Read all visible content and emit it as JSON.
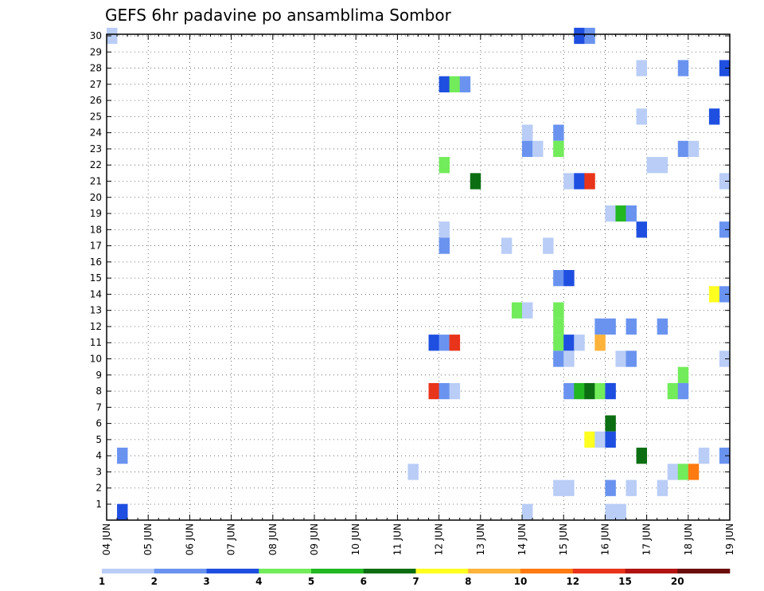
{
  "chart_data": {
    "type": "heatmap",
    "title": "GEFS 6hr padavine po ansamblima Sombor",
    "xlabel": "",
    "ylabel": "",
    "x_tick_labels": [
      "04 JUN",
      "05 JUN",
      "06 JUN",
      "07 JUN",
      "08 JUN",
      "09 JUN",
      "10 JUN",
      "11 JUN",
      "12 JUN",
      "13 JUN",
      "14 JUN",
      "15 JUN",
      "16 JUN",
      "17 JUN",
      "18 JUN",
      "19 JUN"
    ],
    "y_tick_labels": [
      "1",
      "2",
      "3",
      "4",
      "5",
      "6",
      "7",
      "8",
      "9",
      "10",
      "11",
      "12",
      "13",
      "14",
      "15",
      "16",
      "17",
      "18",
      "19",
      "20",
      "21",
      "22",
      "23",
      "24",
      "25",
      "26",
      "27",
      "28",
      "29",
      "30"
    ],
    "time_steps_per_day": 4,
    "ylim": [
      0,
      30
    ],
    "grid": true,
    "colorbar": {
      "placement": "bottom",
      "colors": [
        "#b9cdf6",
        "#6a93f0",
        "#1f4fe0",
        "#72ec5a",
        "#22b822",
        "#0c6e12",
        "#ffff20",
        "#ffb33a",
        "#ff7a10",
        "#e8341a",
        "#b21212",
        "#6b0d0d"
      ],
      "labels": [
        "1",
        "2",
        "3",
        "4",
        "5",
        "6",
        "7",
        "8",
        "10",
        "12",
        "15",
        "20"
      ]
    },
    "cells": [
      {
        "step": 0,
        "member": 30,
        "level": 1
      },
      {
        "step": 1,
        "member": 0,
        "level": 3
      },
      {
        "step": 1,
        "member": 4,
        "level": 2
      },
      {
        "step": 29,
        "member": 3,
        "level": 1
      },
      {
        "step": 31,
        "member": 11,
        "level": 3
      },
      {
        "step": 31,
        "member": 8,
        "level": 10
      },
      {
        "step": 32,
        "member": 27,
        "level": 3
      },
      {
        "step": 32,
        "member": 22,
        "level": 4
      },
      {
        "step": 32,
        "member": 18,
        "level": 1
      },
      {
        "step": 32,
        "member": 17,
        "level": 2
      },
      {
        "step": 32,
        "member": 11,
        "level": 2
      },
      {
        "step": 32,
        "member": 8,
        "level": 2
      },
      {
        "step": 33,
        "member": 27,
        "level": 4
      },
      {
        "step": 33,
        "member": 11,
        "level": 10
      },
      {
        "step": 33,
        "member": 8,
        "level": 1
      },
      {
        "step": 34,
        "member": 27,
        "level": 2
      },
      {
        "step": 35,
        "member": 21,
        "level": 6
      },
      {
        "step": 38,
        "member": 17,
        "level": 1
      },
      {
        "step": 39,
        "member": 13,
        "level": 4
      },
      {
        "step": 40,
        "member": 24,
        "level": 1
      },
      {
        "step": 40,
        "member": 23,
        "level": 2
      },
      {
        "step": 40,
        "member": 13,
        "level": 1
      },
      {
        "step": 40,
        "member": 0,
        "level": 1
      },
      {
        "step": 41,
        "member": 23,
        "level": 1
      },
      {
        "step": 42,
        "member": 17,
        "level": 1
      },
      {
        "step": 43,
        "member": 24,
        "level": 2
      },
      {
        "step": 43,
        "member": 23,
        "level": 4
      },
      {
        "step": 43,
        "member": 15,
        "level": 2
      },
      {
        "step": 43,
        "member": 13,
        "level": 4
      },
      {
        "step": 43,
        "member": 12,
        "level": 4
      },
      {
        "step": 43,
        "member": 11,
        "level": 4
      },
      {
        "step": 43,
        "member": 10,
        "level": 2
      },
      {
        "step": 43,
        "member": 2,
        "level": 1
      },
      {
        "step": 44,
        "member": 21,
        "level": 1
      },
      {
        "step": 44,
        "member": 15,
        "level": 3
      },
      {
        "step": 44,
        "member": 11,
        "level": 3
      },
      {
        "step": 44,
        "member": 10,
        "level": 1
      },
      {
        "step": 44,
        "member": 8,
        "level": 2
      },
      {
        "step": 44,
        "member": 2,
        "level": 1
      },
      {
        "step": 45,
        "member": 30,
        "level": 3
      },
      {
        "step": 45,
        "member": 21,
        "level": 3
      },
      {
        "step": 45,
        "member": 11,
        "level": 1
      },
      {
        "step": 45,
        "member": 8,
        "level": 5
      },
      {
        "step": 46,
        "member": 30,
        "level": 2
      },
      {
        "step": 46,
        "member": 21,
        "level": 10
      },
      {
        "step": 46,
        "member": 8,
        "level": 6
      },
      {
        "step": 46,
        "member": 5,
        "level": 7
      },
      {
        "step": 47,
        "member": 12,
        "level": 2
      },
      {
        "step": 47,
        "member": 11,
        "level": 8
      },
      {
        "step": 47,
        "member": 8,
        "level": 4
      },
      {
        "step": 47,
        "member": 5,
        "level": 1
      },
      {
        "step": 48,
        "member": 19,
        "level": 1
      },
      {
        "step": 48,
        "member": 12,
        "level": 2
      },
      {
        "step": 48,
        "member": 8,
        "level": 3
      },
      {
        "step": 48,
        "member": 6,
        "level": 6
      },
      {
        "step": 48,
        "member": 5,
        "level": 3
      },
      {
        "step": 48,
        "member": 2,
        "level": 2
      },
      {
        "step": 48,
        "member": 0,
        "level": 1
      },
      {
        "step": 49,
        "member": 19,
        "level": 5
      },
      {
        "step": 49,
        "member": 10,
        "level": 1
      },
      {
        "step": 49,
        "member": 0,
        "level": 1
      },
      {
        "step": 50,
        "member": 19,
        "level": 2
      },
      {
        "step": 50,
        "member": 12,
        "level": 2
      },
      {
        "step": 50,
        "member": 10,
        "level": 2
      },
      {
        "step": 50,
        "member": 2,
        "level": 1
      },
      {
        "step": 51,
        "member": 28,
        "level": 1
      },
      {
        "step": 51,
        "member": 25,
        "level": 1
      },
      {
        "step": 51,
        "member": 18,
        "level": 3
      },
      {
        "step": 51,
        "member": 4,
        "level": 6
      },
      {
        "step": 52,
        "member": 22,
        "level": 1
      },
      {
        "step": 53,
        "member": 22,
        "level": 1
      },
      {
        "step": 53,
        "member": 12,
        "level": 2
      },
      {
        "step": 53,
        "member": 2,
        "level": 1
      },
      {
        "step": 54,
        "member": 8,
        "level": 4
      },
      {
        "step": 54,
        "member": 3,
        "level": 1
      },
      {
        "step": 55,
        "member": 28,
        "level": 2
      },
      {
        "step": 55,
        "member": 23,
        "level": 2
      },
      {
        "step": 55,
        "member": 9,
        "level": 4
      },
      {
        "step": 55,
        "member": 8,
        "level": 2
      },
      {
        "step": 55,
        "member": 3,
        "level": 4
      },
      {
        "step": 56,
        "member": 23,
        "level": 1
      },
      {
        "step": 56,
        "member": 3,
        "level": 9
      },
      {
        "step": 57,
        "member": 4,
        "level": 1
      },
      {
        "step": 58,
        "member": 25,
        "level": 3
      },
      {
        "step": 58,
        "member": 14,
        "level": 7
      },
      {
        "step": 59,
        "member": 28,
        "level": 3
      },
      {
        "step": 59,
        "member": 21,
        "level": 1
      },
      {
        "step": 59,
        "member": 18,
        "level": 2
      },
      {
        "step": 59,
        "member": 14,
        "level": 2
      },
      {
        "step": 59,
        "member": 10,
        "level": 1
      },
      {
        "step": 59,
        "member": 4,
        "level": 2
      }
    ]
  }
}
